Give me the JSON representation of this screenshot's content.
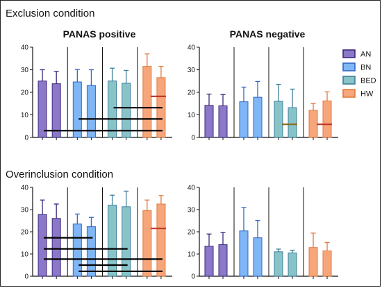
{
  "sections": {
    "exclusion_title": "Exclusion condition",
    "overinclusion_title": "Overinclusion condition"
  },
  "colors": {
    "AN": "#8c78c8",
    "AN_edge": "#3b2a7a",
    "BN": "#7fb6f5",
    "BN_edge": "#2f66c8",
    "BED": "#88c3c7",
    "BED_edge": "#3e7e99",
    "HW": "#f7a67b",
    "HW_edge": "#e07a3c",
    "error_AN": "#3b2a7a",
    "error_BN": "#2f66c8",
    "error_BED": "#3e7e99",
    "error_HW": "#e07a3c",
    "hw_marker": "#c0392b",
    "bed_marker": "#8a6d1e",
    "sig_line": "#000000"
  },
  "legend": {
    "items": [
      {
        "label": "AN",
        "group": "AN"
      },
      {
        "label": "BN",
        "group": "BN"
      },
      {
        "label": "BED",
        "group": "BED"
      },
      {
        "label": "HW",
        "group": "HW"
      }
    ]
  },
  "chart_data": [
    {
      "type": "bar",
      "title": "PANAS positive",
      "condition": "Exclusion condition",
      "groups": [
        "AN",
        "BN",
        "BED",
        "HW"
      ],
      "ylim": [
        0,
        40
      ],
      "yticks": [
        0,
        10,
        20,
        30,
        40
      ],
      "values": [
        [
          25,
          23.8
        ],
        [
          24.6,
          23
        ],
        [
          25,
          24
        ],
        [
          31.5,
          26.5
        ]
      ],
      "errors": [
        [
          5,
          5.5
        ],
        [
          5.5,
          7
        ],
        [
          5.7,
          5.7
        ],
        [
          5.5,
          5
        ]
      ],
      "marker": {
        "group": "HW",
        "value": 18.2
      },
      "sig_lines": [
        {
          "from": "AN",
          "to": "HW",
          "y": 3
        },
        {
          "from": "BN",
          "to": "HW",
          "y": 8.2
        },
        {
          "from": "BED",
          "to": "HW",
          "y": 13.2
        }
      ]
    },
    {
      "type": "bar",
      "title": "PANAS negative",
      "condition": "Exclusion condition",
      "groups": [
        "AN",
        "BN",
        "BED",
        "HW"
      ],
      "ylim": [
        0,
        40
      ],
      "yticks": [
        0,
        10,
        20,
        30,
        40
      ],
      "values": [
        [
          14.2,
          14
        ],
        [
          15.8,
          17.8
        ],
        [
          16,
          13.2
        ],
        [
          12,
          16.2
        ]
      ],
      "errors": [
        [
          5,
          5
        ],
        [
          6.5,
          7
        ],
        [
          7.5,
          8.2
        ],
        [
          3,
          4
        ]
      ],
      "markers": [
        {
          "group": "BED",
          "value": 5.8
        },
        {
          "group": "HW",
          "value": 5.8
        }
      ],
      "sig_lines": []
    },
    {
      "type": "bar",
      "title": "",
      "condition": "Overinclusion condition",
      "groups": [
        "AN",
        "BN",
        "BED",
        "HW"
      ],
      "ylim": [
        0,
        40
      ],
      "yticks": [
        0,
        10,
        20,
        30,
        40
      ],
      "values": [
        [
          27.8,
          26
        ],
        [
          23.5,
          22.3
        ],
        [
          32,
          31.3
        ],
        [
          29.5,
          32.5
        ]
      ],
      "errors": [
        [
          6.5,
          6.5
        ],
        [
          4.5,
          4.2
        ],
        [
          4.5,
          7
        ],
        [
          4.8,
          3.8
        ]
      ],
      "marker": {
        "group": "HW",
        "value": 21.5
      },
      "sig_lines": [
        {
          "from": "AN",
          "to": "BN",
          "y": 17.3
        },
        {
          "from": "AN",
          "to": "BED",
          "y": 12.3
        },
        {
          "from": "AN",
          "to": "HW",
          "y": 7.7
        },
        {
          "from": "BN",
          "to": "BED",
          "y": 5
        },
        {
          "from": "BN",
          "to": "HW",
          "y": 2.2
        }
      ]
    },
    {
      "type": "bar",
      "title": "",
      "condition": "Overinclusion condition",
      "groups": [
        "AN",
        "BN",
        "BED",
        "HW"
      ],
      "ylim": [
        0,
        40
      ],
      "yticks": [
        0,
        10,
        20,
        30,
        40
      ],
      "values": [
        [
          13.5,
          14.2
        ],
        [
          20.4,
          17.3
        ],
        [
          11,
          10.5
        ],
        [
          12.9,
          11.4
        ]
      ],
      "errors": [
        [
          5.5,
          5.5
        ],
        [
          10.5,
          7.8
        ],
        [
          1.2,
          1.2
        ],
        [
          6.5,
          3.8
        ]
      ],
      "sig_lines": []
    }
  ]
}
